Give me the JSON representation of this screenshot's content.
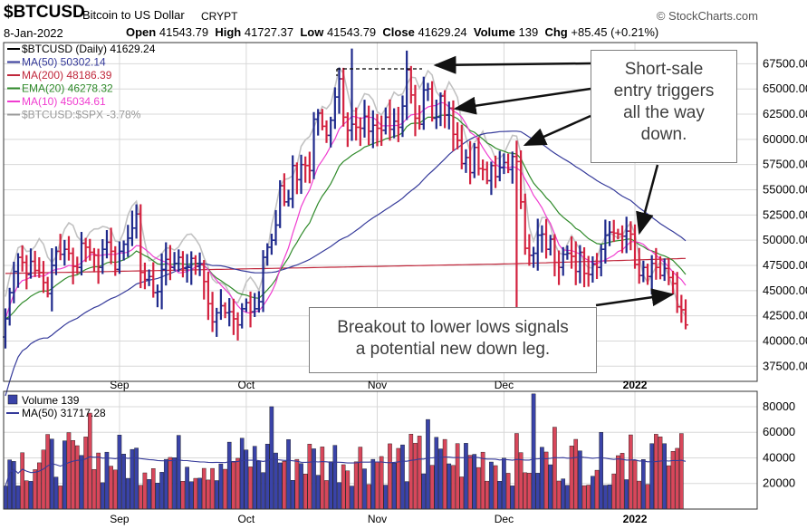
{
  "header": {
    "symbol": "$BTCUSD",
    "name": "Bitcoin to US Dollar",
    "exchange": "CRYPT",
    "brand": "© StockCharts.com",
    "date": "8-Jan-2022",
    "open_label": "Open",
    "open": "41543.79",
    "high_label": "High",
    "high": "41727.37",
    "low_label": "Low",
    "low": "41543.79",
    "close_label": "Close",
    "close": "41629.24",
    "volume_label": "Volume",
    "volume": "139",
    "chg_label": "Chg",
    "chg": "+85.45 (+0.21%)"
  },
  "colors": {
    "up": "#1f2a8c",
    "down": "#d3223f",
    "ma50": "#353a9a",
    "ma200": "#c0273b",
    "ema20": "#2f8a2a",
    "ma10": "#f03cd0",
    "spx": "#c2c2c2",
    "vol_up": "#3a43a8",
    "vol_down": "#d8475b",
    "grid": "#d8d8d8"
  },
  "legend": [
    {
      "text": "$BTCUSD (Daily) 41629.24",
      "color": "#000000"
    },
    {
      "text": "MA(50) 50302.14",
      "color": "#353a9a"
    },
    {
      "text": "MA(200) 48186.39",
      "color": "#c0273b"
    },
    {
      "text": "EMA(20) 46278.32",
      "color": "#2f8a2a"
    },
    {
      "text": "MA(10) 45034.61",
      "color": "#f03cd0"
    },
    {
      "text": "$BTCUSD:$SPX -3.78%",
      "color": "#9a9a9a"
    }
  ],
  "volume_legend": [
    {
      "text": "Volume 139",
      "color": "#000000"
    },
    {
      "text": "MA(50) 31717.28",
      "color": "#353a9a"
    }
  ],
  "callouts": {
    "short_sale": [
      "Short-sale",
      "entry triggers",
      "all the way",
      "down."
    ],
    "breakout": [
      "Breakout to lower lows signals",
      "a potential new down leg."
    ]
  },
  "chart_data": {
    "type": "ohlc",
    "price_axis": {
      "ticks": [
        37500,
        40000,
        42500,
        45000,
        47500,
        50000,
        52500,
        55000,
        57500,
        60000,
        62500,
        65000,
        67500
      ],
      "ylim": [
        36000,
        69600
      ]
    },
    "volume_axis": {
      "ticks": [
        20000,
        40000,
        60000,
        80000
      ],
      "ylim": [
        0,
        92000
      ]
    },
    "x_labels": [
      {
        "label": "Sep",
        "day": 0
      },
      {
        "label": "Oct",
        "day": 30
      },
      {
        "label": "Nov",
        "day": 61
      },
      {
        "label": "Dec",
        "day": 91
      },
      {
        "label": "2022",
        "day": 122
      }
    ],
    "start_day_offset": -27,
    "closes": [
      42200,
      44800,
      46900,
      48300,
      47800,
      46600,
      47900,
      47000,
      46800,
      45800,
      44700,
      47500,
      48900,
      48600,
      49100,
      48700,
      47400,
      47300,
      49700,
      49300,
      48800,
      48500,
      47300,
      49100,
      49800,
      48900,
      47100,
      48900,
      49600,
      50200,
      51200,
      52600,
      46800,
      46100,
      46400,
      44800,
      44900,
      47100,
      48100,
      47300,
      47700,
      48300,
      47200,
      47300,
      48200,
      47400,
      47600,
      45900,
      43700,
      41900,
      42800,
      43500,
      42800,
      42900,
      42200,
      41600,
      43200,
      43800,
      42900,
      43200,
      43900,
      48300,
      49300,
      50000,
      51500,
      55400,
      53800,
      54100,
      57400,
      56000,
      57500,
      57400,
      56900,
      62000,
      62600,
      61300,
      60400,
      61900,
      64200,
      66000,
      62200,
      60900,
      61500,
      61200,
      61100,
      62300,
      60800,
      61400,
      61100,
      60900,
      62200,
      61000,
      61800,
      61200,
      63300,
      66900,
      64400,
      62100,
      61500,
      64900,
      65000,
      62100,
      62200,
      64300,
      62400,
      63100,
      60500,
      59900,
      57600,
      58200,
      56700,
      59200,
      57100,
      57000,
      55900,
      57400,
      56300,
      57200,
      57700,
      57000,
      58300,
      57800,
      53800,
      49200,
      48500,
      48700,
      50500,
      50600,
      49100,
      50100,
      47800,
      47300,
      48600,
      48700,
      48400,
      46900,
      48800,
      46700,
      46600,
      47600,
      47300,
      49100,
      50500,
      50800,
      50700,
      50600,
      50400,
      50900,
      50600,
      47600,
      46500,
      47300,
      46400,
      47700,
      47300,
      46500,
      47200,
      46300,
      45700,
      43400,
      43100,
      41600
    ],
    "series": [
      {
        "name": "MA(50)",
        "last": 50302.14
      },
      {
        "name": "MA(200)",
        "last": 48186.39
      },
      {
        "name": "EMA(20)",
        "last": 46278.32
      },
      {
        "name": "MA(10)",
        "last": 45034.61
      },
      {
        "name": "$BTCUSD:$SPX",
        "last_change": "-3.78%"
      }
    ]
  }
}
